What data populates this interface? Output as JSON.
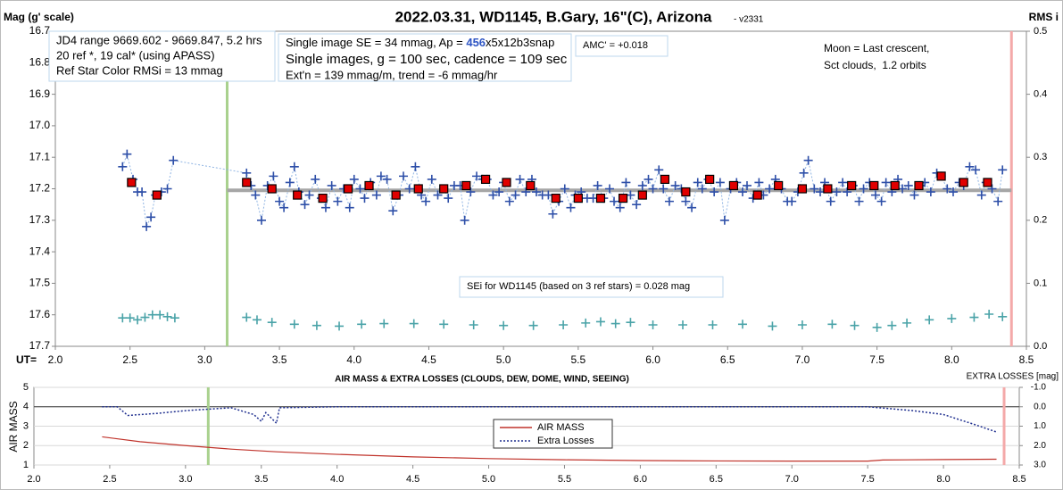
{
  "chart_data": [
    {
      "type": "scatter",
      "title": "2022.03.31, WD1145, B.Gary, 16\"(C), Arizona",
      "subtitle": "- v2331",
      "y_label": "Mag (g' scale)",
      "y2_label": "RMS i",
      "x_label": "UT=",
      "xlim": [
        2.0,
        8.5
      ],
      "xticks": [
        {
          "value": 2,
          "label": "2.0"
        },
        2.5,
        {
          "value": 3,
          "label": "3.0"
        },
        3.5,
        {
          "value": 4,
          "label": "4.0"
        },
        4.5,
        {
          "value": 5,
          "label": "5.0"
        },
        5.5,
        {
          "value": 6,
          "label": "6.0"
        },
        6.5,
        {
          "value": 7,
          "label": "7.0"
        },
        7.5,
        {
          "value": 8,
          "label": "8.0"
        },
        8.5
      ],
      "ylim": [
        16.7,
        17.7
      ],
      "y_inverted": true,
      "yticks": [
        16.7,
        16.8,
        16.9,
        {
          "value": 17,
          "label": "17.0"
        },
        17.1,
        17.2,
        17.3,
        17.4,
        17.5,
        17.6,
        17.7
      ],
      "y2lim": [
        0,
        0.5
      ],
      "y2ticks": [
        0.5,
        0.4,
        0.3,
        0.2,
        0.1,
        {
          "value": 0,
          "label": "0.0"
        }
      ],
      "vlines": [
        {
          "x": 3.15,
          "color": "#a9d18e"
        },
        {
          "x": 8.4,
          "color": "#f4a9a9"
        }
      ],
      "trend": {
        "x": [
          3.15,
          8.4
        ],
        "value": 17.205,
        "color": "#a6a6a6"
      },
      "series": [
        {
          "marker": "cross",
          "color": "#2e4fa8",
          "line_color": "#8fb4e3",
          "x": [
            2.45,
            2.48,
            2.52,
            2.55,
            2.58,
            2.61,
            2.64,
            2.67,
            2.71,
            2.75,
            2.79,
            3.28,
            3.31,
            3.34,
            3.38,
            3.42,
            3.46,
            3.5,
            3.53,
            3.57,
            3.6,
            3.63,
            3.67,
            3.7,
            3.74,
            3.78,
            3.81,
            3.85,
            3.89,
            3.93,
            3.97,
            4.0,
            4.04,
            4.07,
            4.11,
            4.15,
            4.18,
            4.22,
            4.26,
            4.3,
            4.33,
            4.37,
            4.41,
            4.45,
            4.48,
            4.52,
            4.56,
            4.6,
            4.63,
            4.67,
            4.71,
            4.74,
            4.78,
            4.82,
            4.86,
            4.89,
            4.93,
            4.97,
            5.0,
            5.04,
            5.08,
            5.11,
            5.15,
            5.19,
            5.22,
            5.26,
            5.3,
            5.33,
            5.37,
            5.41,
            5.45,
            5.48,
            5.52,
            5.56,
            5.6,
            5.63,
            5.67,
            5.71,
            5.74,
            5.78,
            5.82,
            5.85,
            5.89,
            5.93,
            5.97,
            6.0,
            6.04,
            6.07,
            6.11,
            6.15,
            6.19,
            6.22,
            6.26,
            6.3,
            6.33,
            6.37,
            6.41,
            6.45,
            6.48,
            6.52,
            6.56,
            6.6,
            6.63,
            6.67,
            6.71,
            6.74,
            6.78,
            6.82,
            6.86,
            6.9,
            6.93,
            6.97,
            7.01,
            7.04,
            7.08,
            7.12,
            7.15,
            7.19,
            7.23,
            7.27,
            7.3,
            7.34,
            7.38,
            7.41,
            7.45,
            7.49,
            7.53,
            7.56,
            7.6,
            7.64,
            7.67,
            7.71,
            7.75,
            7.79,
            7.82,
            7.86,
            7.9,
            7.93,
            7.97,
            8.01,
            8.05,
            8.08,
            8.12,
            8.16,
            8.2,
            8.23,
            8.27,
            8.31,
            8.34
          ],
          "values": [
            17.13,
            17.09,
            17.17,
            17.21,
            17.21,
            17.32,
            17.29,
            17.22,
            17.21,
            17.2,
            17.11,
            17.15,
            17.19,
            17.22,
            17.3,
            17.19,
            17.16,
            17.24,
            17.26,
            17.18,
            17.13,
            17.21,
            17.25,
            17.22,
            17.17,
            17.23,
            17.26,
            17.19,
            17.24,
            17.2,
            17.26,
            17.17,
            17.2,
            17.23,
            17.18,
            17.22,
            17.16,
            17.17,
            17.27,
            17.22,
            17.16,
            17.2,
            17.13,
            17.22,
            17.24,
            17.17,
            17.22,
            17.2,
            17.23,
            17.19,
            17.19,
            17.3,
            17.21,
            17.16,
            17.17,
            17.17,
            17.22,
            17.21,
            17.18,
            17.24,
            17.22,
            17.17,
            17.21,
            17.17,
            17.21,
            17.22,
            17.22,
            17.28,
            17.24,
            17.2,
            17.26,
            17.22,
            17.21,
            17.23,
            17.23,
            17.19,
            17.23,
            17.2,
            17.24,
            17.26,
            17.18,
            17.22,
            17.25,
            17.19,
            17.17,
            17.2,
            17.14,
            17.2,
            17.24,
            17.19,
            17.2,
            17.24,
            17.26,
            17.18,
            17.2,
            17.17,
            17.21,
            17.18,
            17.3,
            17.2,
            17.18,
            17.21,
            17.19,
            17.23,
            17.18,
            17.22,
            17.2,
            17.17,
            17.2,
            17.24,
            17.24,
            17.21,
            17.15,
            17.11,
            17.2,
            17.21,
            17.18,
            17.24,
            17.21,
            17.18,
            17.21,
            17.19,
            17.24,
            17.2,
            17.18,
            17.22,
            17.24,
            17.18,
            17.21,
            17.17,
            17.2,
            17.19,
            17.22,
            17.19,
            17.18,
            17.21,
            17.15,
            17.16,
            17.2,
            17.21,
            17.18,
            17.19,
            17.13,
            17.14,
            17.22,
            17.18,
            17.2,
            17.24,
            17.14
          ]
        },
        {
          "marker": "square",
          "color": "#e00000",
          "x": [
            2.51,
            2.68,
            3.28,
            3.45,
            3.62,
            3.79,
            3.96,
            4.1,
            4.28,
            4.43,
            4.6,
            4.75,
            4.88,
            5.02,
            5.18,
            5.35,
            5.5,
            5.65,
            5.8,
            5.93,
            6.08,
            6.22,
            6.38,
            6.54,
            6.7,
            6.84,
            7.0,
            7.17,
            7.33,
            7.48,
            7.62,
            7.78,
            7.93,
            8.08,
            8.24
          ],
          "values": [
            17.18,
            17.22,
            17.18,
            17.2,
            17.22,
            17.23,
            17.2,
            17.19,
            17.22,
            17.2,
            17.2,
            17.19,
            17.17,
            17.18,
            17.19,
            17.23,
            17.23,
            17.23,
            17.23,
            17.22,
            17.17,
            17.21,
            17.17,
            17.19,
            17.22,
            17.19,
            17.2,
            17.2,
            17.19,
            17.19,
            17.19,
            17.19,
            17.16,
            17.18,
            17.18
          ]
        },
        {
          "marker": "cross",
          "color": "#4aa3a8",
          "axis": "y2",
          "x": [
            2.45,
            2.5,
            2.55,
            2.6,
            2.65,
            2.7,
            2.75,
            2.8,
            3.28,
            3.35,
            3.45,
            3.6,
            3.75,
            3.9,
            4.05,
            4.2,
            4.4,
            4.6,
            4.8,
            5.0,
            5.2,
            5.4,
            5.55,
            5.65,
            5.75,
            5.85,
            6.0,
            6.2,
            6.4,
            6.6,
            6.8,
            7.0,
            7.2,
            7.35,
            7.5,
            7.6,
            7.7,
            7.85,
            8.0,
            8.15,
            8.25,
            8.34
          ],
          "values": [
            0.045,
            0.045,
            0.042,
            0.046,
            0.05,
            0.05,
            0.047,
            0.045,
            0.046,
            0.042,
            0.038,
            0.035,
            0.033,
            0.032,
            0.035,
            0.036,
            0.036,
            0.035,
            0.034,
            0.033,
            0.033,
            0.034,
            0.037,
            0.039,
            0.036,
            0.038,
            0.034,
            0.034,
            0.034,
            0.035,
            0.032,
            0.034,
            0.035,
            0.033,
            0.03,
            0.033,
            0.037,
            0.042,
            0.044,
            0.046,
            0.051,
            0.047
          ]
        }
      ],
      "annotations": [
        {
          "lines": [
            "JD4 range 9669.602 - 9669.847, 5.2 hrs",
            "20 ref *, 19 cal* (using APASS)",
            "Ref Star Color RMSi = 13 mmag"
          ]
        },
        {
          "lines": [
            [
              "Single image SE = 34 mmag, Ap = ",
              "456",
              "x5x12b3snap"
            ],
            "Single images, g = 100 sec, cadence = 109 sec",
            "Ext'n = 139 mmag/m, trend = -6 mmag/hr"
          ]
        },
        {
          "lines": [
            "AMC' = +0.018"
          ]
        },
        {
          "lines": [
            "Moon = Last crescent,",
            "Sct clouds,  1.2 orbits"
          ]
        },
        {
          "lines": [
            "SEi for WD1145 (based on 3 ref stars) = 0.028 mag"
          ]
        }
      ]
    },
    {
      "type": "line",
      "title": "AIR MASS & EXTRA LOSSES (CLOUDS, DEW, DOME, WIND, SEEING)",
      "y_label": "AIR MASS",
      "y2_label": "EXTRA LOSSES [mag]",
      "xlim": [
        2.0,
        8.5
      ],
      "xticks": [
        {
          "value": 2,
          "label": "2.0"
        },
        2.5,
        {
          "value": 3,
          "label": "3.0"
        },
        3.5,
        {
          "value": 4,
          "label": "4.0"
        },
        4.5,
        {
          "value": 5,
          "label": "5.0"
        },
        5.5,
        {
          "value": 6,
          "label": "6.0"
        },
        6.5,
        {
          "value": 7,
          "label": "7.0"
        },
        7.5,
        {
          "value": 8,
          "label": "8.0"
        },
        8.5
      ],
      "ylim": [
        1,
        5
      ],
      "yticks": [
        1,
        2,
        3,
        4,
        5
      ],
      "y2lim": [
        -1,
        3
      ],
      "y2_inverted": true,
      "y2ticks": [
        {
          "value": -1,
          "label": "-1.0"
        },
        {
          "value": 0,
          "label": "0.0"
        },
        {
          "value": 1,
          "label": "1.0"
        },
        {
          "value": 2,
          "label": "2.0"
        },
        {
          "value": 3,
          "label": "3.0"
        }
      ],
      "grid": true,
      "vlines": [
        {
          "x": 3.15,
          "color": "#a9d18e"
        },
        {
          "x": 8.4,
          "color": "#f4a9a9"
        }
      ],
      "series": [
        {
          "name": "AIR MASS",
          "color": "#c0332b",
          "dash": false,
          "x": [
            2.45,
            2.7,
            3.0,
            3.3,
            3.6,
            4.0,
            4.5,
            5.0,
            5.5,
            6.0,
            6.5,
            7.0,
            7.5,
            7.6,
            8.0,
            8.35
          ],
          "values": [
            2.45,
            2.2,
            2.0,
            1.82,
            1.68,
            1.55,
            1.42,
            1.33,
            1.27,
            1.23,
            1.21,
            1.2,
            1.2,
            1.26,
            1.28,
            1.3
          ]
        },
        {
          "name": "Extra Losses",
          "color": "#1f2f8f",
          "dash": true,
          "axis": "y2",
          "x": [
            2.45,
            2.55,
            2.62,
            2.7,
            2.8,
            3.0,
            3.3,
            3.45,
            3.5,
            3.53,
            3.6,
            3.62,
            4.0,
            5.0,
            6.0,
            7.0,
            7.5,
            7.8,
            8.0,
            8.2,
            8.35
          ],
          "values": [
            0,
            0,
            0.45,
            0.4,
            0.35,
            0.2,
            0.05,
            0.4,
            0.75,
            0.3,
            0.85,
            0.05,
            0,
            0,
            0,
            0,
            0,
            0.2,
            0.4,
            0.9,
            1.3
          ]
        }
      ]
    }
  ]
}
